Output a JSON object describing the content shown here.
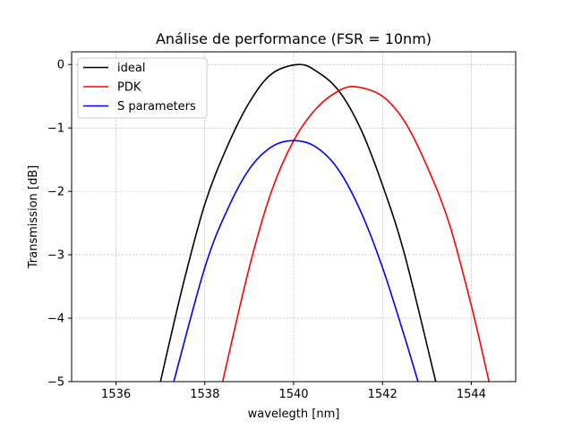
{
  "chart_data": {
    "type": "line",
    "title": "Análise de performance (FSR = 10nm)",
    "xlabel": "wavelegth [nm]",
    "ylabel": "Transmission [dB]",
    "xlim": [
      1535.0,
      1545.0
    ],
    "ylim": [
      -5,
      0.2
    ],
    "xticks": [
      1536,
      1538,
      1540,
      1542,
      1544
    ],
    "yticks": [
      0,
      -1,
      -2,
      -3,
      -4,
      -5
    ],
    "xtick_labels": [
      "1536",
      "1538",
      "1540",
      "1542",
      "1544"
    ],
    "ytick_labels": [
      "0",
      "−1",
      "−2",
      "−3",
      "−4",
      "−5"
    ],
    "grid": true,
    "legend_position": "upper-left",
    "series": [
      {
        "name": "ideal",
        "color": "#000000",
        "x": [
          1537.0,
          1537.5,
          1538.0,
          1538.5,
          1539.0,
          1539.5,
          1540.1,
          1540.5,
          1541.0,
          1541.5,
          1542.0,
          1542.5,
          1543.2
        ],
        "y": [
          -5.0,
          -3.5,
          -2.2,
          -1.3,
          -0.6,
          -0.15,
          0.0,
          -0.1,
          -0.4,
          -1.0,
          -1.9,
          -3.0,
          -5.0
        ]
      },
      {
        "name": "PDK",
        "color": "#ff0000",
        "x": [
          1538.4,
          1539.0,
          1539.5,
          1540.0,
          1540.5,
          1541.0,
          1541.4,
          1542.0,
          1542.5,
          1543.0,
          1543.5,
          1544.0,
          1544.4
        ],
        "y": [
          -5.0,
          -3.2,
          -2.0,
          -1.2,
          -0.7,
          -0.42,
          -0.35,
          -0.5,
          -0.9,
          -1.6,
          -2.5,
          -3.8,
          -5.0
        ]
      },
      {
        "name": "S parameters",
        "color": "#0000ff",
        "x": [
          1537.3,
          1538.0,
          1538.5,
          1539.0,
          1539.5,
          1540.0,
          1540.5,
          1541.0,
          1541.5,
          1542.0,
          1542.5,
          1542.8
        ],
        "y": [
          -5.0,
          -3.2,
          -2.3,
          -1.65,
          -1.3,
          -1.2,
          -1.3,
          -1.65,
          -2.3,
          -3.2,
          -4.3,
          -5.0
        ]
      }
    ]
  }
}
